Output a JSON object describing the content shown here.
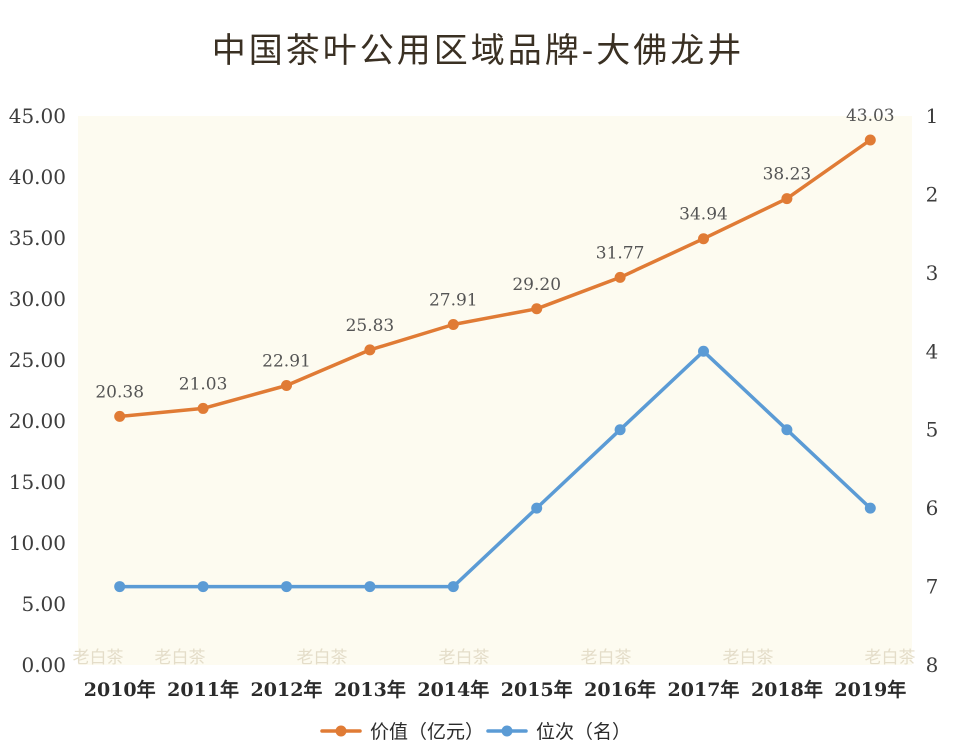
{
  "chart_data": {
    "type": "line",
    "title": "中国茶叶公用区域品牌-大佛龙井",
    "categories": [
      "2010年",
      "2011年",
      "2012年",
      "2013年",
      "2014年",
      "2015年",
      "2016年",
      "2017年",
      "2018年",
      "2019年"
    ],
    "series": [
      {
        "name": "价值（亿元）",
        "axis": "left",
        "color": "#e07b35",
        "values": [
          20.38,
          21.03,
          22.91,
          25.83,
          27.91,
          29.2,
          31.77,
          34.94,
          38.23,
          43.03
        ],
        "labels": [
          "20.38",
          "21.03",
          "22.91",
          "25.83",
          "27.91",
          "29.20",
          "31.77",
          "34.94",
          "38.23",
          "43.03"
        ]
      },
      {
        "name": "位次（名）",
        "axis": "right",
        "color": "#5b9bd5",
        "values": [
          7,
          7,
          7,
          7,
          7,
          6,
          5,
          4,
          5,
          6
        ]
      }
    ],
    "y_left": {
      "min": 0,
      "max": 45,
      "step": 5,
      "ticks": [
        "0.00",
        "5.00",
        "10.00",
        "15.00",
        "20.00",
        "25.00",
        "30.00",
        "35.00",
        "40.00",
        "45.00"
      ]
    },
    "y_right": {
      "min": 1,
      "max": 8,
      "inverted": true,
      "ticks": [
        "1",
        "2",
        "3",
        "4",
        "5",
        "6",
        "7",
        "8"
      ]
    },
    "plot_background": "#fdfbf0",
    "legend_position": "bottom-center",
    "watermark_text": "老白茶",
    "grid": false
  }
}
